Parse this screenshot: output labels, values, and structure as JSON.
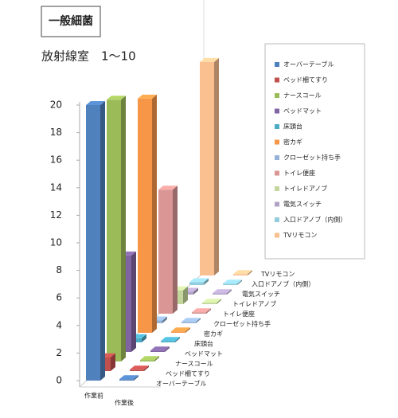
{
  "chart_data": {
    "type": "bar3d",
    "title": "一般細菌",
    "subtitle": "放射線室　1～10",
    "categories": [
      "作業前",
      "作業後"
    ],
    "ylim": [
      0,
      20
    ],
    "yticks": [
      0,
      2,
      4,
      6,
      8,
      10,
      12,
      14,
      16,
      18,
      20
    ],
    "series": [
      {
        "name": "オーバーテーブル",
        "color": "#4F81BD",
        "values": [
          20,
          0.1
        ]
      },
      {
        "name": "ベッド柵てすり",
        "color": "#C0504D",
        "values": [
          1,
          0.1
        ]
      },
      {
        "name": "ナースコール",
        "color": "#9BBB59",
        "values": [
          19,
          0.1
        ]
      },
      {
        "name": "ベッドマット",
        "color": "#8064A2",
        "values": [
          7,
          0.1
        ]
      },
      {
        "name": "床頭台",
        "color": "#4BACC6",
        "values": [
          0.3,
          0.1
        ]
      },
      {
        "name": "密カギ",
        "color": "#F79646",
        "values": [
          17,
          0.1
        ]
      },
      {
        "name": "クローゼット持ち手",
        "color": "#95B3D7",
        "values": [
          0.2,
          0.1
        ]
      },
      {
        "name": "トイレ便座",
        "color": "#D99694",
        "values": [
          9,
          0.1
        ]
      },
      {
        "name": "トイレドアノブ",
        "color": "#C3D69B",
        "values": [
          1,
          0.1
        ]
      },
      {
        "name": "電気スイッチ",
        "color": "#B3A2C7",
        "values": [
          0.2,
          0.1
        ]
      },
      {
        "name": "入口ドアノブ（内側）",
        "color": "#93CDDD",
        "values": [
          0.2,
          0.1
        ]
      },
      {
        "name": "TVリモコン",
        "color": "#FAC090",
        "values": [
          15.5,
          0.1
        ]
      }
    ]
  }
}
